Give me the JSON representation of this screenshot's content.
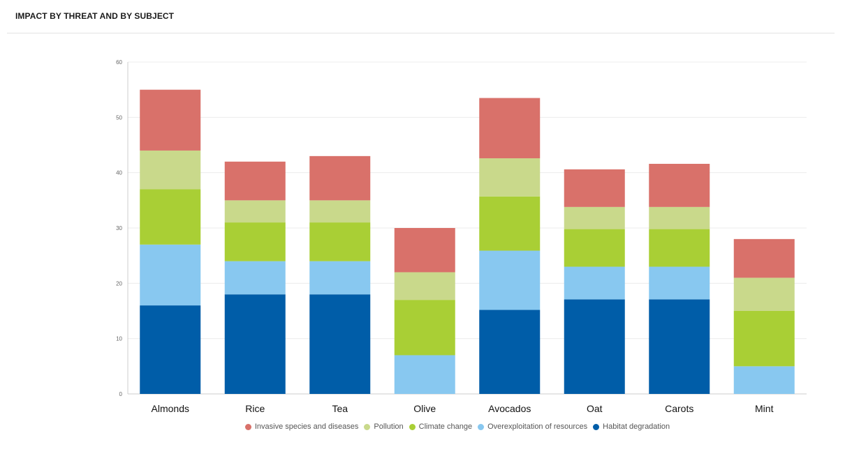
{
  "header": {
    "title": "IMPACT BY THREAT AND BY SUBJECT"
  },
  "chart_data": {
    "type": "bar",
    "stacked": true,
    "categories": [
      "Almonds",
      "Rice",
      "Tea",
      "Olive",
      "Avocados",
      "Oat",
      "Carots",
      "Mint"
    ],
    "series": [
      {
        "name": "Habitat degradation",
        "color": "#005da8",
        "values": [
          16,
          18,
          18,
          0,
          15.2,
          17.1,
          17.1,
          0
        ]
      },
      {
        "name": "Overexploitation of resources",
        "color": "#88c8f0",
        "values": [
          11,
          6,
          6,
          7,
          10.7,
          5.9,
          5.9,
          5
        ]
      },
      {
        "name": "Climate change",
        "color": "#a9cf35",
        "values": [
          10,
          7,
          7,
          10,
          9.8,
          6.8,
          6.8,
          10
        ]
      },
      {
        "name": "Pollution",
        "color": "#c9d98b",
        "values": [
          7,
          4,
          4,
          5,
          6.9,
          4,
          4,
          6
        ]
      },
      {
        "name": "Invasive species and diseases",
        "color": "#d9716a",
        "values": [
          11,
          7,
          8,
          8,
          10.9,
          6.8,
          7.8,
          7
        ]
      }
    ],
    "legend_order": [
      "Invasive species and diseases",
      "Pollution",
      "Climate change",
      "Overexploitation of resources",
      "Habitat degradation"
    ],
    "yticks": [
      0,
      10,
      20,
      30,
      40,
      50,
      60
    ],
    "ylim": [
      0,
      60
    ],
    "grid": true,
    "legend_position": "bottom"
  }
}
